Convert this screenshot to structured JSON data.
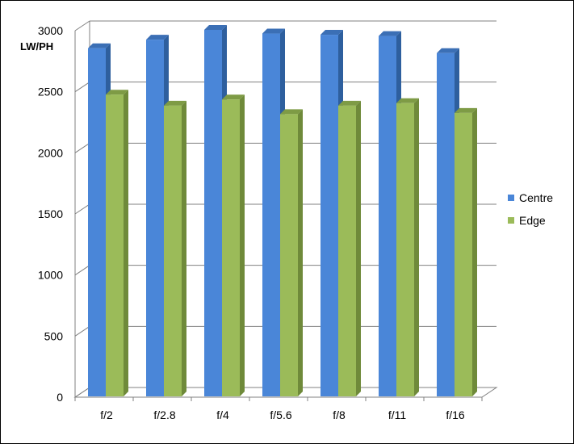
{
  "chart_data": {
    "type": "bar",
    "style": "3d-clustered",
    "ylabel": "LW/PH",
    "xlabel": "",
    "title": "",
    "categories": [
      "f/2",
      "f/2.8",
      "f/4",
      "f/5.6",
      "f/8",
      "f/11",
      "f/16"
    ],
    "series": [
      {
        "name": "Centre",
        "values": [
          2850,
          2920,
          3000,
          2970,
          2960,
          2950,
          2810
        ],
        "color": "#4A86D8",
        "side_color": "#2E5F9E",
        "top_color": "#3B6FB5"
      },
      {
        "name": "Edge",
        "values": [
          2470,
          2380,
          2430,
          2310,
          2380,
          2400,
          2320
        ],
        "color": "#9BBB59",
        "side_color": "#6F8A3A",
        "top_color": "#7E9B45"
      }
    ],
    "ylim": [
      0,
      3000
    ],
    "yticks": [
      0,
      500,
      1000,
      1500,
      2000,
      2500,
      3000
    ],
    "grid": true,
    "legend_position": "right"
  }
}
